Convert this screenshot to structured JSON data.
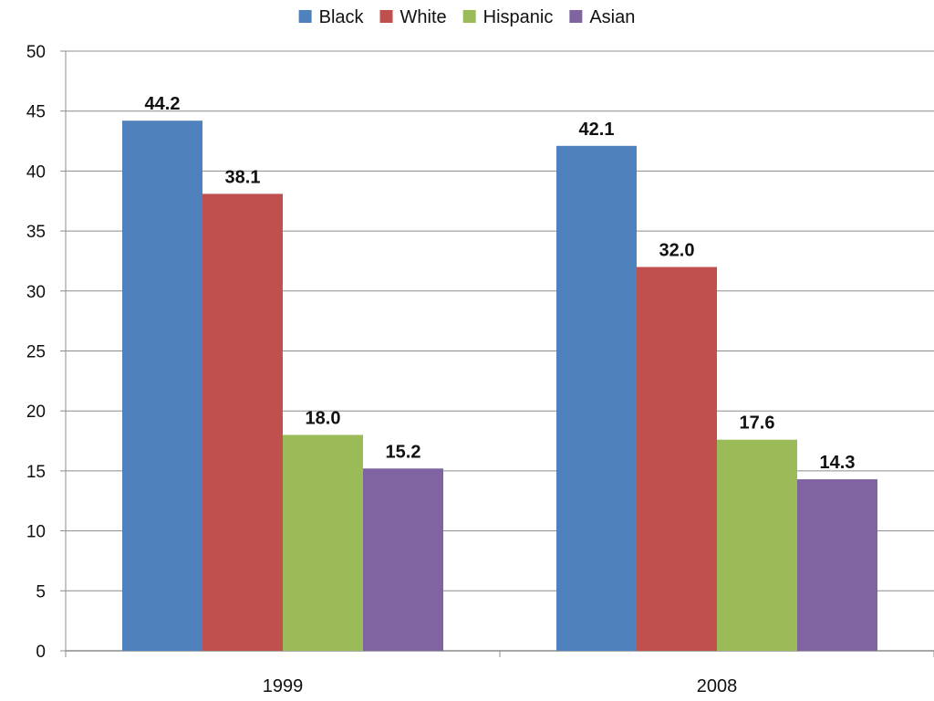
{
  "chart_data": {
    "type": "bar",
    "title": "",
    "xlabel": "",
    "ylabel": "",
    "categories": [
      "1999",
      "2008"
    ],
    "series": [
      {
        "name": "Black",
        "color": "#4f81bd",
        "values": [
          44.2,
          42.1
        ],
        "labels": [
          "44.2",
          "42.1"
        ]
      },
      {
        "name": "White",
        "color": "#c0504d",
        "values": [
          38.1,
          32.0
        ],
        "labels": [
          "38.1",
          "32.0"
        ]
      },
      {
        "name": "Hispanic",
        "color": "#9bbb59",
        "values": [
          18.0,
          17.6
        ],
        "labels": [
          "18.0",
          "17.6"
        ]
      },
      {
        "name": "Asian",
        "color": "#8064a2",
        "values": [
          15.2,
          14.3
        ],
        "labels": [
          "15.2",
          "14.3"
        ]
      }
    ],
    "ylim": [
      0,
      50
    ],
    "yticks": [
      0,
      5,
      10,
      15,
      20,
      25,
      30,
      35,
      40,
      45,
      50
    ],
    "grid": true,
    "legend_position": "top"
  }
}
